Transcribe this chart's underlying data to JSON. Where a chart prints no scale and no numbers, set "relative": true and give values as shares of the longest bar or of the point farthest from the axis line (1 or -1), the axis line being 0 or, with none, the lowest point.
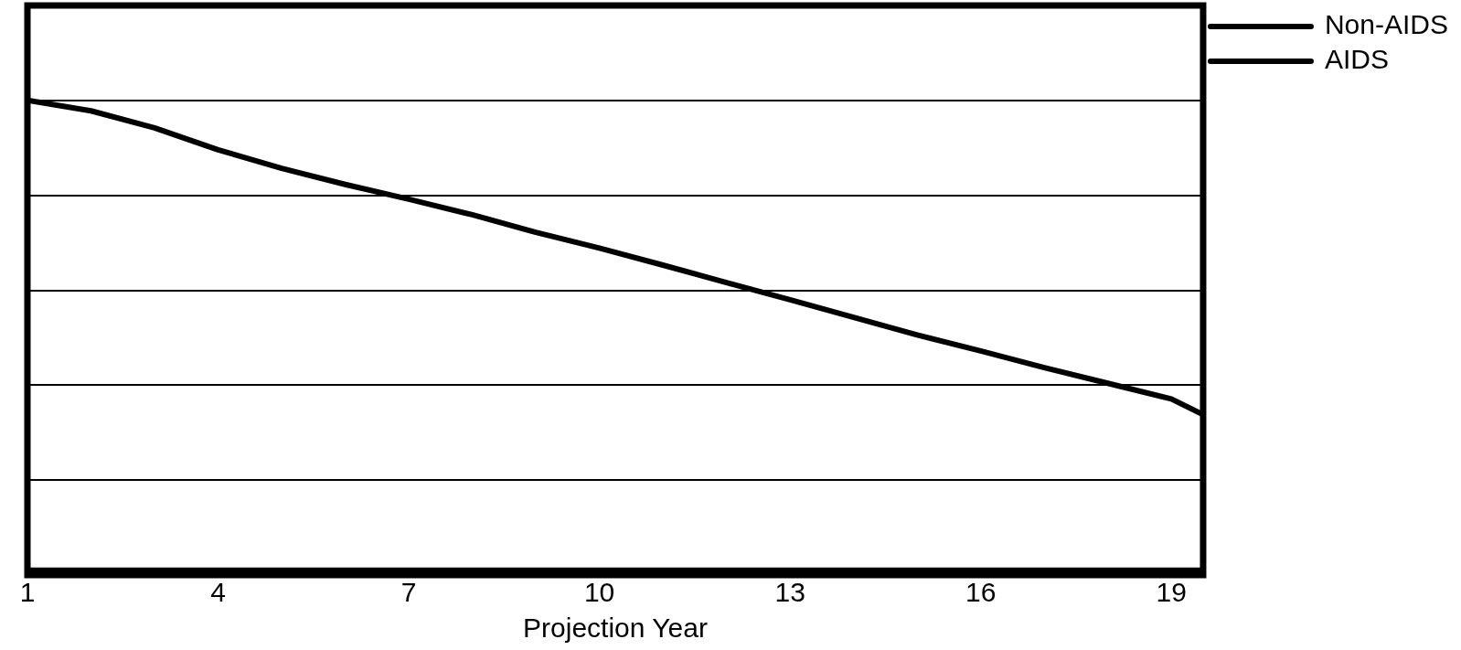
{
  "chart_data": {
    "type": "line",
    "xlabel": "Projection Year",
    "relative": true,
    "xlim": [
      1,
      19.5
    ],
    "xticks": [
      1,
      4,
      7,
      10,
      13,
      16,
      19
    ],
    "grid": "y",
    "legend": "top right",
    "marker": "none",
    "line_style": "solid",
    "x": [
      1,
      2,
      3,
      4,
      5,
      6,
      7,
      8,
      9,
      10,
      11,
      12,
      13,
      14,
      15,
      16,
      17,
      18,
      19,
      19.5
    ],
    "series": [
      {
        "name": "Non-AIDS",
        "color": "#000000",
        "values": [
          1,
          0.978,
          0.942,
          0.896,
          0.857,
          0.823,
          0.792,
          0.759,
          0.722,
          0.689,
          0.653,
          0.616,
          0.58,
          0.543,
          0.506,
          0.472,
          0.437,
          0.404,
          0.371,
          0.338
        ]
      },
      {
        "name": "AIDS",
        "color": "#000000",
        "values": [
          0.01,
          0.01,
          0.01,
          0.01,
          0.01,
          0.01,
          0.01,
          0.01,
          0.01,
          0.01,
          0.01,
          0.01,
          0.01,
          0.01,
          0.01,
          0.01,
          0.01,
          0.01,
          0.01,
          0.01
        ]
      }
    ]
  }
}
